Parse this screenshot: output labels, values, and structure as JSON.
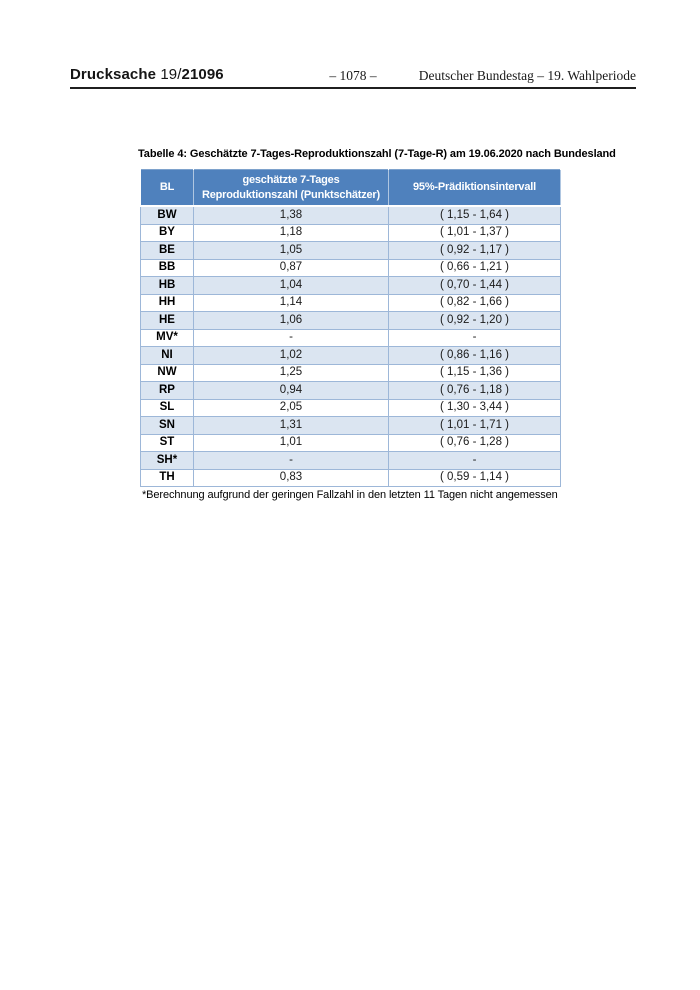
{
  "page_header": {
    "doc_label": "Drucksache",
    "doc_number_prefix": "19/",
    "doc_number_bold": "21096",
    "page_number": "– 1078 –",
    "right_text": "Deutscher Bundestag – 19. Wahlperiode"
  },
  "table": {
    "title": "Tabelle 4: Geschätzte 7-Tages-Reproduktionszahl (7-Tage-R) am 19.06.2020 nach Bundesland",
    "header": {
      "col1": "BL",
      "col2": "geschätzte 7-Tages\nReproduktionszahl (Punktschätzer)",
      "col3": "95%-Prädiktionsintervall"
    },
    "rows": [
      {
        "bl": "BW",
        "r": "1,38",
        "pi": "( 1,15 - 1,64 )"
      },
      {
        "bl": "BY",
        "r": "1,18",
        "pi": "( 1,01 - 1,37 )"
      },
      {
        "bl": "BE",
        "r": "1,05",
        "pi": "( 0,92 - 1,17 )"
      },
      {
        "bl": "BB",
        "r": "0,87",
        "pi": "( 0,66 - 1,21 )"
      },
      {
        "bl": "HB",
        "r": "1,04",
        "pi": "( 0,70 - 1,44 )"
      },
      {
        "bl": "HH",
        "r": "1,14",
        "pi": "( 0,82 - 1,66 )"
      },
      {
        "bl": "HE",
        "r": "1,06",
        "pi": "( 0,92 - 1,20 )"
      },
      {
        "bl": "MV*",
        "r": "-",
        "pi": "-"
      },
      {
        "bl": "NI",
        "r": "1,02",
        "pi": "( 0,86 - 1,16 )"
      },
      {
        "bl": "NW",
        "r": "1,25",
        "pi": "( 1,15 - 1,36 )"
      },
      {
        "bl": "RP",
        "r": "0,94",
        "pi": "( 0,76 - 1,18 )"
      },
      {
        "bl": "SL",
        "r": "2,05",
        "pi": "( 1,30 - 3,44 )"
      },
      {
        "bl": "SN",
        "r": "1,31",
        "pi": "( 1,01 - 1,71 )"
      },
      {
        "bl": "ST",
        "r": "1,01",
        "pi": "( 0,76 - 1,28 )"
      },
      {
        "bl": "SH*",
        "r": "-",
        "pi": "-"
      },
      {
        "bl": "TH",
        "r": "0,83",
        "pi": "( 0,59 - 1,14 )"
      }
    ],
    "footnote": "*Berechnung aufgrund der geringen Fallzahl in den letzten 11 Tagen nicht angemessen"
  },
  "colors": {
    "header_bg": "#4F81BD",
    "row_alt_bg": "#DBE5F1",
    "row_bg": "#FFFFFF",
    "cell_border": "#9DB7D8",
    "table_border": "#7EA2CC",
    "rule": "#1F1F1F"
  }
}
